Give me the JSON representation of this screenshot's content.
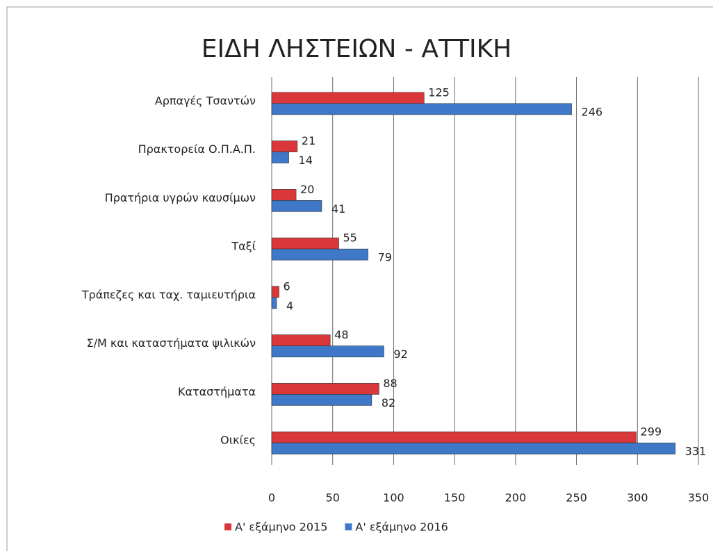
{
  "chart_data": {
    "type": "bar",
    "orientation": "horizontal",
    "title": "ΕΙΔΗ ΛΗΣΤΕΙΩΝ - ΑΤΤΙΚΗ",
    "categories": [
      "Αρπαγές Τσαντών",
      "Πρακτορεία Ο.Π.Α.Π.",
      "Πρατήρια υγρών καυσίμων",
      "Ταξί",
      "Τράπεζες και ταχ. ταμιευτήρια",
      "Σ/Μ και καταστήματα  ψιλικών",
      "Καταστήματα",
      "Οικίες"
    ],
    "series": [
      {
        "name": "Α' εξάμηνο 2015",
        "color": "#d9373a",
        "values": [
          125,
          21,
          20,
          55,
          6,
          48,
          88,
          299
        ]
      },
      {
        "name": "Α' εξάμηνο 2016",
        "color": "#3f78c9",
        "values": [
          246,
          14,
          41,
          79,
          4,
          92,
          82,
          331
        ]
      }
    ],
    "xlim": [
      0,
      350
    ],
    "xticks": [
      0,
      50,
      100,
      150,
      200,
      250,
      300,
      350
    ],
    "grid": true,
    "legend": "bottom"
  }
}
